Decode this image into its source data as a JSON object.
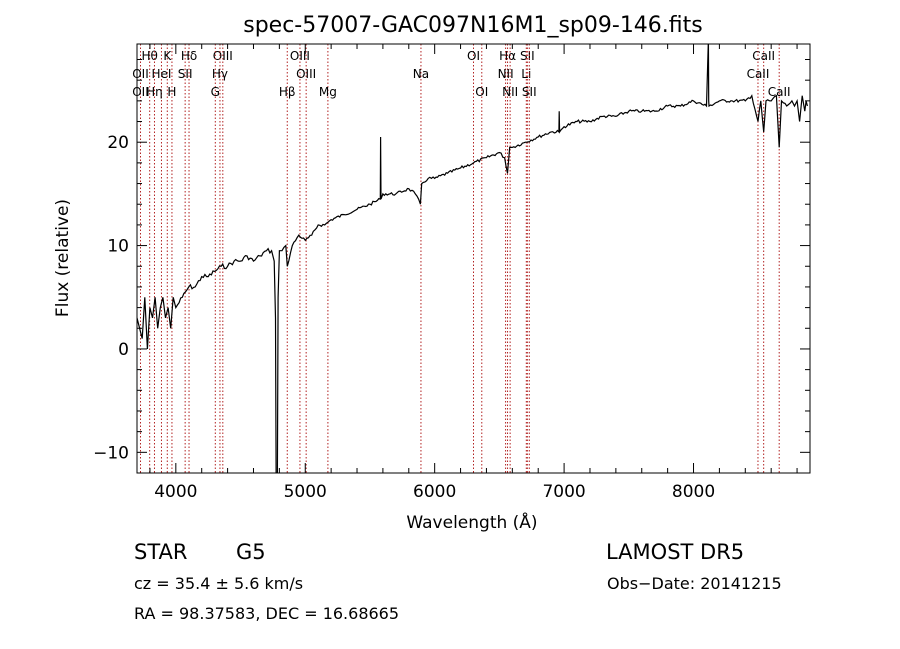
{
  "chart_data": {
    "type": "line",
    "title": "spec-57007-GAC097N16M1_sp09-146.fits",
    "xlabel": "Wavelength (Å)",
    "ylabel": "Flux (relative)",
    "xlim": [
      3700,
      8900
    ],
    "ylim": [
      -12,
      29.5
    ],
    "xticks": [
      4000,
      5000,
      6000,
      7000,
      8000
    ],
    "yticks": [
      -10,
      0,
      10,
      20
    ],
    "grid": false,
    "legend": "none",
    "series": [
      {
        "x": [
          3700,
          3720,
          3740,
          3760,
          3780,
          3800,
          3820,
          3840,
          3860,
          3880,
          3900,
          3920,
          3940,
          3960,
          3980,
          4000,
          4050,
          4100,
          4150,
          4200,
          4250,
          4300,
          4350,
          4400,
          4450,
          4500,
          4550,
          4600,
          4650,
          4700,
          4740,
          4760,
          4770,
          4775,
          4780,
          4785,
          4790,
          4800,
          4820,
          4850,
          4861,
          4900,
          4950,
          5000,
          5050,
          5100,
          5150,
          5200,
          5300,
          5400,
          5500,
          5580,
          5582,
          5585,
          5600,
          5700,
          5800,
          5850,
          5890,
          5900,
          5950,
          6000,
          6100,
          6200,
          6300,
          6400,
          6500,
          6540,
          6563,
          6580,
          6600,
          6700,
          6800,
          6900,
          6960,
          6962,
          6965,
          7000,
          7100,
          7200,
          7300,
          7400,
          7500,
          7600,
          7700,
          7800,
          7900,
          8000,
          8100,
          8115,
          8117,
          8120,
          8200,
          8300,
          8400,
          8450,
          8498,
          8520,
          8542,
          8560,
          8600,
          8640,
          8662,
          8680,
          8720,
          8760,
          8780,
          8800,
          8820,
          8840,
          8860,
          8870,
          8880
        ],
        "y": [
          3,
          2,
          1,
          5,
          0,
          4,
          3,
          5,
          2,
          4,
          5,
          3,
          4,
          2,
          5,
          4,
          5,
          6,
          6,
          7,
          7,
          7.5,
          8,
          8,
          8.5,
          8.5,
          9,
          8.5,
          9,
          9.5,
          9.5,
          8.5,
          3,
          -12,
          -12,
          -12,
          5,
          9.5,
          9.5,
          10,
          8,
          10,
          11,
          10.5,
          11,
          12,
          12,
          12.5,
          13,
          13.5,
          14,
          14.5,
          20.5,
          14.5,
          15,
          15,
          15.5,
          15,
          14,
          16,
          16.5,
          16.5,
          17,
          17.5,
          18,
          18.5,
          19,
          18.5,
          17,
          19.5,
          19.5,
          20,
          20.5,
          21,
          21,
          23,
          21,
          21.5,
          22,
          22,
          22.5,
          22.5,
          23,
          23,
          23,
          23.5,
          23.5,
          24,
          23.5,
          30,
          24,
          23.5,
          24,
          24,
          24,
          24.5,
          22,
          24,
          21,
          24,
          24,
          24.5,
          19.5,
          24,
          23.5,
          24,
          23.5,
          24,
          22,
          24.5,
          23,
          24,
          23.5
        ]
      }
    ],
    "annotations": {
      "line_markers": [
        {
          "label": "Hθ",
          "x": 3798,
          "row": 0
        },
        {
          "label": "K",
          "x": 3934,
          "row": 0
        },
        {
          "label": "Hδ",
          "x": 4102,
          "row": 0
        },
        {
          "label": "OIII",
          "x": 4363,
          "row": 0
        },
        {
          "label": "OIII",
          "x": 4959,
          "row": 0
        },
        {
          "label": "OI",
          "x": 6300,
          "row": 0
        },
        {
          "label": "Hα",
          "x": 6563,
          "row": 0
        },
        {
          "label": "SII",
          "x": 6716,
          "row": 0
        },
        {
          "label": "CaII",
          "x": 8542,
          "row": 0
        },
        {
          "label": "OII",
          "x": 3727,
          "row": 1
        },
        {
          "label": "HeI",
          "x": 3889,
          "row": 1
        },
        {
          "label": "SII",
          "x": 4072,
          "row": 1
        },
        {
          "label": "Hγ",
          "x": 4341,
          "row": 1
        },
        {
          "label": "OIII",
          "x": 5007,
          "row": 1
        },
        {
          "label": "Na",
          "x": 5894,
          "row": 1
        },
        {
          "label": "NII",
          "x": 6548,
          "row": 1
        },
        {
          "label": "Li",
          "x": 6708,
          "row": 1
        },
        {
          "label": "CaII",
          "x": 8498,
          "row": 1
        },
        {
          "label": "OII",
          "x": 3727,
          "row": 2
        },
        {
          "label": "Hη",
          "x": 3835,
          "row": 2
        },
        {
          "label": "H",
          "x": 3970,
          "row": 2
        },
        {
          "label": "G",
          "x": 4305,
          "row": 2
        },
        {
          "label": "Hβ",
          "x": 4861,
          "row": 2
        },
        {
          "label": "Mg",
          "x": 5175,
          "row": 2
        },
        {
          "label": "OI",
          "x": 6364,
          "row": 2
        },
        {
          "label": "NII",
          "x": 6583,
          "row": 2
        },
        {
          "label": "SII",
          "x": 6731,
          "row": 2
        },
        {
          "label": "CaII",
          "x": 8662,
          "row": 2
        }
      ]
    }
  },
  "info": {
    "object_class": "STAR",
    "subclass": "G5",
    "survey": "LAMOST DR5",
    "redshift": "cz = 35.4 ± 5.6 km/s",
    "obs_date": "Obs−Date: 20141215",
    "coords": "RA =  98.37583, DEC =  16.68665"
  },
  "colors": {
    "spectrum": "#000000",
    "line_marker": "#b22222",
    "axes": "#000000",
    "background": "#ffffff"
  }
}
